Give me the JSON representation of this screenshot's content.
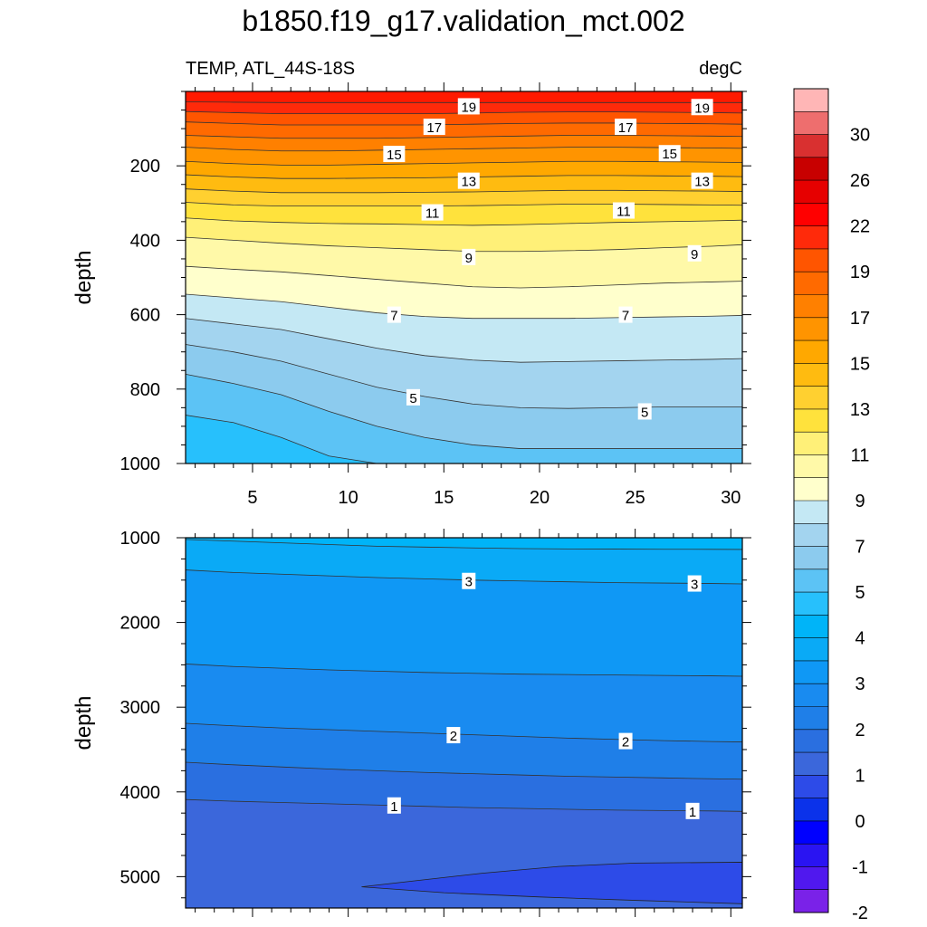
{
  "figure": {
    "title": "b1850.f19_g17.validation_mct.002",
    "left_label": "TEMP, ATL_44S-18S",
    "right_label": "degC"
  },
  "chart_data": [
    {
      "type": "contour",
      "panel": "upper",
      "ylabel": "depth",
      "xlabel": "",
      "xlim": [
        1.5,
        30.6
      ],
      "ylim": [
        1000,
        0
      ],
      "x_ticks": [
        5,
        10,
        15,
        20,
        25,
        30
      ],
      "y_ticks": [
        200,
        400,
        600,
        800,
        1000
      ],
      "background_level": 20,
      "levels": [
        {
          "value": 19,
          "color": "#ff2a0a",
          "depth": [
            28,
            29,
            30,
            30,
            30,
            30,
            30,
            30,
            30,
            30,
            30,
            30,
            30
          ]
        },
        {
          "value": 18,
          "color": "#ff5500",
          "depth": [
            54,
            57,
            60,
            60,
            60,
            60,
            58,
            56,
            55,
            55,
            56,
            57,
            58
          ]
        },
        {
          "value": 17,
          "color": "#ff6a00",
          "depth": [
            82,
            86,
            90,
            90,
            90,
            90,
            88,
            86,
            85,
            85,
            86,
            87,
            88
          ]
        },
        {
          "value": 16,
          "color": "#ff8000",
          "depth": [
            118,
            122,
            126,
            126,
            126,
            124,
            122,
            120,
            118,
            118,
            119,
            120,
            121
          ]
        },
        {
          "value": 15,
          "color": "#ff9400",
          "depth": [
            150,
            156,
            160,
            160,
            158,
            156,
            154,
            152,
            150,
            150,
            151,
            152,
            153
          ]
        },
        {
          "value": 14,
          "color": "#ffa800",
          "depth": [
            188,
            194,
            198,
            198,
            196,
            194,
            192,
            190,
            188,
            188,
            189,
            190,
            191
          ]
        },
        {
          "value": 13,
          "color": "#ffbb10",
          "depth": [
            224,
            230,
            234,
            234,
            233,
            232,
            230,
            228,
            226,
            226,
            227,
            228,
            229
          ]
        },
        {
          "value": 12,
          "color": "#ffd030",
          "depth": [
            262,
            268,
            272,
            272,
            272,
            271,
            270,
            268,
            266,
            266,
            267,
            268,
            269
          ]
        },
        {
          "value": 11,
          "color": "#ffe23c",
          "depth": [
            298,
            305,
            308,
            308,
            308,
            308,
            307,
            305,
            303,
            303,
            304,
            305,
            306
          ]
        },
        {
          "value": 10,
          "color": "#fff078",
          "depth": [
            340,
            348,
            352,
            355,
            356,
            358,
            360,
            358,
            355,
            352,
            350,
            348,
            346
          ]
        },
        {
          "value": 9,
          "color": "#fff9a8",
          "depth": [
            392,
            400,
            408,
            415,
            420,
            425,
            430,
            430,
            428,
            425,
            420,
            416,
            412
          ]
        },
        {
          "value": 8,
          "color": "#ffffcc",
          "depth": [
            470,
            478,
            485,
            495,
            505,
            515,
            525,
            528,
            525,
            520,
            515,
            512,
            510
          ]
        },
        {
          "value": 7,
          "color": "#c4e8f4",
          "depth": [
            545,
            555,
            565,
            580,
            595,
            605,
            610,
            610,
            610,
            608,
            606,
            604,
            602
          ]
        },
        {
          "value": 6,
          "color": "#a3d4ef",
          "depth": [
            610,
            625,
            640,
            665,
            690,
            710,
            722,
            728,
            726,
            724,
            722,
            720,
            718
          ]
        },
        {
          "value": 5,
          "color": "#8ccbee",
          "depth": [
            680,
            700,
            725,
            760,
            795,
            820,
            840,
            850,
            852,
            850,
            848,
            848,
            848
          ]
        },
        {
          "value": 4,
          "color": "#5cc3f5",
          "depth": [
            760,
            785,
            815,
            860,
            900,
            930,
            950,
            960,
            960,
            960,
            960,
            960,
            960
          ]
        },
        {
          "value": 3,
          "color": "#27c0fc",
          "depth": [
            870,
            890,
            930,
            980,
            1010,
            1030,
            1030,
            1030,
            1030,
            1030,
            1030,
            1030,
            1030
          ]
        }
      ],
      "contour_labels": [
        {
          "text": "19",
          "x": 16.3,
          "depth": 40
        },
        {
          "text": "19",
          "x": 28.5,
          "depth": 42
        },
        {
          "text": "17",
          "x": 14.5,
          "depth": 95
        },
        {
          "text": "17",
          "x": 24.5,
          "depth": 95
        },
        {
          "text": "15",
          "x": 12.4,
          "depth": 168
        },
        {
          "text": "15",
          "x": 26.8,
          "depth": 166
        },
        {
          "text": "13",
          "x": 16.3,
          "depth": 240
        },
        {
          "text": "13",
          "x": 28.5,
          "depth": 240
        },
        {
          "text": "11",
          "x": 14.4,
          "depth": 325
        },
        {
          "text": "11",
          "x": 24.4,
          "depth": 320
        },
        {
          "text": "9",
          "x": 16.3,
          "depth": 445
        },
        {
          "text": "9",
          "x": 28.1,
          "depth": 435
        },
        {
          "text": "7",
          "x": 12.4,
          "depth": 600
        },
        {
          "text": "7",
          "x": 24.5,
          "depth": 600
        },
        {
          "text": "5",
          "x": 13.4,
          "depth": 822
        },
        {
          "text": "5",
          "x": 25.5,
          "depth": 860
        }
      ]
    },
    {
      "type": "contour",
      "panel": "lower",
      "ylabel": "depth",
      "xlabel": "",
      "xlim": [
        1.5,
        30.6
      ],
      "ylim": [
        5370,
        1000
      ],
      "x_ticks": [
        5,
        10,
        15,
        20,
        25,
        30
      ],
      "y_ticks": [
        1000,
        2000,
        3000,
        4000,
        5000
      ],
      "background_level": 4,
      "levels": [
        {
          "value": 3.5,
          "color": "#0aaaf6",
          "depth": [
            1020,
            1040,
            1060,
            1080,
            1100,
            1110,
            1120,
            1128,
            1132,
            1134,
            1136,
            1137,
            1138
          ]
        },
        {
          "value": 3,
          "color": "#0f98f5",
          "depth": [
            1380,
            1410,
            1430,
            1450,
            1470,
            1485,
            1500,
            1510,
            1520,
            1530,
            1535,
            1540,
            1545
          ]
        },
        {
          "value": 2.5,
          "color": "#198bf0",
          "depth": [
            2490,
            2520,
            2540,
            2560,
            2575,
            2590,
            2600,
            2610,
            2615,
            2620,
            2625,
            2630,
            2635
          ]
        },
        {
          "value": 2,
          "color": "#1f7fe8",
          "depth": [
            3190,
            3220,
            3245,
            3265,
            3285,
            3305,
            3325,
            3345,
            3365,
            3380,
            3395,
            3405,
            3410
          ]
        },
        {
          "value": 1.5,
          "color": "#2a6fe0",
          "depth": [
            3650,
            3680,
            3705,
            3730,
            3750,
            3770,
            3785,
            3800,
            3815,
            3825,
            3835,
            3845,
            3850
          ]
        },
        {
          "value": 1,
          "color": "#3b67db",
          "depth": [
            4090,
            4110,
            4125,
            4140,
            4155,
            4170,
            4185,
            4195,
            4205,
            4215,
            4220,
            4225,
            4230
          ]
        }
      ],
      "deep_patch": {
        "value": 0.5,
        "color": "#2d4be8"
      },
      "contour_labels": [
        {
          "text": "3",
          "x": 16.3,
          "depth": 1510
        },
        {
          "text": "3",
          "x": 28.1,
          "depth": 1540
        },
        {
          "text": "2",
          "x": 15.5,
          "depth": 3330
        },
        {
          "text": "2",
          "x": 24.5,
          "depth": 3400
        },
        {
          "text": "1",
          "x": 12.4,
          "depth": 4160
        },
        {
          "text": "1",
          "x": 28.0,
          "depth": 4225
        }
      ]
    }
  ],
  "colorbar": {
    "labels": [
      "30",
      "26",
      "22",
      "19",
      "17",
      "15",
      "13",
      "11",
      "9",
      "7",
      "5",
      "4",
      "3",
      "2",
      "1",
      "0",
      "-1",
      "-2"
    ],
    "colors": [
      "#ffb6b6",
      "#ee6e6e",
      "#d93030",
      "#c80000",
      "#e60000",
      "#ff0000",
      "#ff2a0a",
      "#ff5500",
      "#ff6a00",
      "#ff8000",
      "#ff9400",
      "#ffa800",
      "#ffbb10",
      "#ffd030",
      "#ffe23c",
      "#fff078",
      "#fff9a8",
      "#ffffcc",
      "#c4e8f4",
      "#a3d4ef",
      "#8ccbee",
      "#5cc3f5",
      "#27c0fc",
      "#00b4f8",
      "#0aaaf6",
      "#0f98f5",
      "#198bf0",
      "#1f7fe8",
      "#2a6fe0",
      "#3b67db",
      "#2d4be8",
      "#0b32ea",
      "#0000ff",
      "#2a14f2",
      "#5018ee",
      "#7a22e8"
    ]
  }
}
